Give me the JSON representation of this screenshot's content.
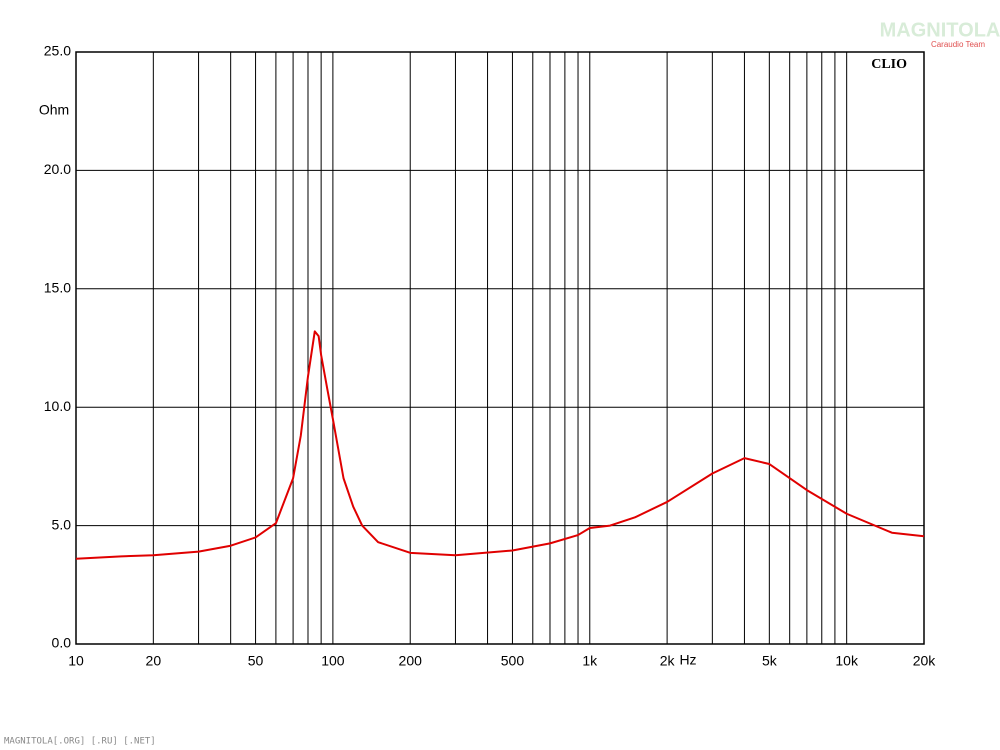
{
  "chart_data": {
    "type": "line",
    "y_label": "Ohm",
    "x_label": "Hz",
    "brand": "CLIO",
    "watermark": "MAGNITOLA",
    "watermark_sub": "Caraudio Team",
    "footer": "MAGNITOLA[.ORG] [.RU] [.NET]",
    "color": "#e00000",
    "xscale": "log",
    "grid": true,
    "xlim": [
      10,
      20000
    ],
    "ylim": [
      0,
      25
    ],
    "xticks": [
      10,
      20,
      50,
      100,
      200,
      500,
      {
        "value": 1000,
        "label": "1k"
      },
      {
        "value": 2000,
        "label": "2k"
      },
      {
        "value": 5000,
        "label": "5k"
      },
      {
        "value": 10000,
        "label": "10k"
      },
      {
        "value": 20000,
        "label": "20k"
      }
    ],
    "xgrid": [
      10,
      20,
      30,
      40,
      50,
      60,
      70,
      80,
      90,
      100,
      200,
      300,
      400,
      500,
      600,
      700,
      800,
      900,
      1000,
      2000,
      3000,
      4000,
      5000,
      6000,
      7000,
      8000,
      9000,
      10000,
      20000
    ],
    "yticks": [
      {
        "value": 0,
        "label": "0.0"
      },
      {
        "value": 5,
        "label": "5.0"
      },
      {
        "value": 10,
        "label": "10.0"
      },
      {
        "value": 15,
        "label": "15.0"
      },
      {
        "value": 20,
        "label": "20.0"
      },
      {
        "value": 25,
        "label": "25.0"
      }
    ],
    "x": [
      10,
      15,
      20,
      30,
      40,
      50,
      60,
      70,
      75,
      80,
      85,
      88,
      90,
      95,
      100,
      110,
      120,
      130,
      150,
      200,
      300,
      500,
      700,
      900,
      1000,
      1200,
      1500,
      2000,
      3000,
      4000,
      5000,
      7000,
      10000,
      15000,
      20000
    ],
    "values": [
      3.6,
      3.7,
      3.75,
      3.9,
      4.15,
      4.5,
      5.1,
      7.0,
      8.8,
      11.3,
      13.2,
      13.0,
      12.2,
      10.8,
      9.5,
      7.0,
      5.8,
      5.0,
      4.3,
      3.85,
      3.75,
      3.95,
      4.25,
      4.6,
      4.9,
      5.0,
      5.35,
      6.0,
      7.2,
      7.85,
      7.6,
      6.5,
      5.5,
      4.7,
      4.55
    ]
  }
}
